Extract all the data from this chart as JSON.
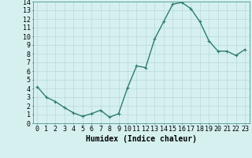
{
  "x": [
    0,
    1,
    2,
    3,
    4,
    5,
    6,
    7,
    8,
    9,
    10,
    11,
    12,
    13,
    14,
    15,
    16,
    17,
    18,
    19,
    20,
    21,
    22,
    23
  ],
  "y": [
    4.2,
    3.0,
    2.5,
    1.8,
    1.2,
    0.8,
    1.1,
    1.5,
    0.7,
    1.1,
    4.1,
    6.6,
    6.4,
    9.7,
    11.7,
    13.7,
    13.9,
    13.2,
    11.7,
    9.5,
    8.3,
    8.3,
    7.8,
    8.5
  ],
  "line_color": "#2e7d6e",
  "marker": "+",
  "marker_size": 3,
  "marker_color": "#2e7d6e",
  "bg_color": "#d6f0f0",
  "grid_color": "#b8d8d8",
  "xlabel": "Humidex (Indice chaleur)",
  "xlabel_fontsize": 7,
  "tick_fontsize": 6,
  "xlim": [
    -0.5,
    23.5
  ],
  "ylim": [
    0,
    14
  ],
  "yticks": [
    0,
    1,
    2,
    3,
    4,
    5,
    6,
    7,
    8,
    9,
    10,
    11,
    12,
    13,
    14
  ],
  "xticks": [
    0,
    1,
    2,
    3,
    4,
    5,
    6,
    7,
    8,
    9,
    10,
    11,
    12,
    13,
    14,
    15,
    16,
    17,
    18,
    19,
    20,
    21,
    22,
    23
  ],
  "line_width": 1.0,
  "spine_color": "#4a9a8a"
}
